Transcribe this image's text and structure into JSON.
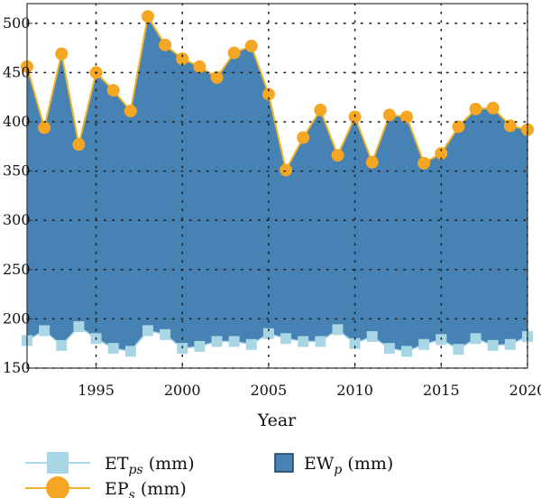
{
  "chart_data": {
    "type": "area",
    "xlabel": "Year",
    "ylabel": "",
    "xlim": [
      1991,
      2020
    ],
    "ylim": [
      150,
      520
    ],
    "x_ticks": [
      "1995",
      "2000",
      "2005",
      "2010",
      "2015",
      "2020"
    ],
    "y_ticks": [
      "150",
      "200",
      "250",
      "300",
      "350",
      "400",
      "450",
      "500"
    ],
    "grid": true,
    "legend_placement": "bottom",
    "x": [
      1991,
      1992,
      1993,
      1994,
      1995,
      1996,
      1997,
      1998,
      1999,
      2000,
      2001,
      2002,
      2003,
      2004,
      2005,
      2006,
      2007,
      2008,
      2009,
      2010,
      2011,
      2012,
      2013,
      2014,
      2015,
      2016,
      2017,
      2018,
      2019,
      2020
    ],
    "series": [
      {
        "key": "et",
        "legend_main": "ET",
        "legend_sub": "ps",
        "legend_unit": " (mm)",
        "color": "#a9d6e5",
        "marker": "square",
        "values": [
          178,
          188,
          173,
          192,
          180,
          170,
          167,
          188,
          184,
          170,
          172,
          177,
          177,
          174,
          185,
          180,
          177,
          177,
          189,
          175,
          182,
          170,
          167,
          174,
          179,
          169,
          180,
          173,
          174,
          182
        ]
      },
      {
        "key": "ep",
        "legend_main": "EP",
        "legend_sub": "s",
        "legend_unit": " (mm)",
        "color": "#f5a623",
        "line_color": "#f0b429",
        "marker": "circle",
        "values": [
          456,
          394,
          469,
          377,
          450,
          432,
          411,
          507,
          478,
          464,
          456,
          445,
          470,
          477,
          428,
          351,
          384,
          412,
          366,
          405,
          359,
          407,
          405,
          358,
          368,
          395,
          413,
          414,
          396,
          392
        ]
      },
      {
        "key": "ew",
        "legend_main": "EW",
        "legend_sub": "p",
        "legend_unit": " (mm)",
        "color": "#4682b4",
        "marker": "filled-area"
      }
    ]
  }
}
